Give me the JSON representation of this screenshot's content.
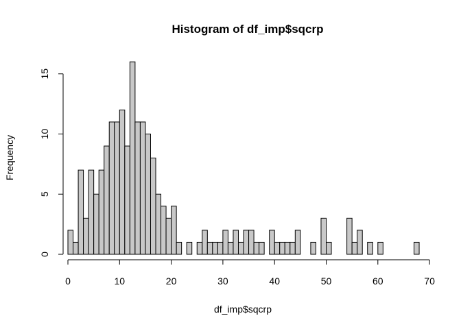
{
  "chart_data": {
    "type": "bar",
    "title": "Histogram of df_imp$sqcrp",
    "xlabel": "df_imp$sqcrp",
    "ylabel": "Frequency",
    "bar_color": "#c8c8c8",
    "bin_start": 0,
    "bin_width": 1,
    "xlim": [
      0,
      68
    ],
    "ylim": [
      0,
      16
    ],
    "x_ticks": [
      0,
      10,
      20,
      30,
      40,
      50,
      60,
      70
    ],
    "y_ticks": [
      0,
      5,
      10,
      15
    ],
    "grid": false,
    "values": [
      2,
      1,
      7,
      3,
      7,
      5,
      7,
      9,
      11,
      11,
      12,
      9,
      16,
      11,
      11,
      10,
      8,
      5,
      4,
      3,
      4,
      1,
      0,
      1,
      0,
      1,
      2,
      1,
      1,
      1,
      2,
      1,
      2,
      1,
      2,
      2,
      1,
      1,
      0,
      2,
      1,
      1,
      1,
      1,
      2,
      0,
      0,
      1,
      0,
      3,
      1,
      0,
      0,
      0,
      3,
      1,
      2,
      0,
      1,
      0,
      1,
      0,
      0,
      0,
      0,
      0,
      0,
      1
    ]
  }
}
